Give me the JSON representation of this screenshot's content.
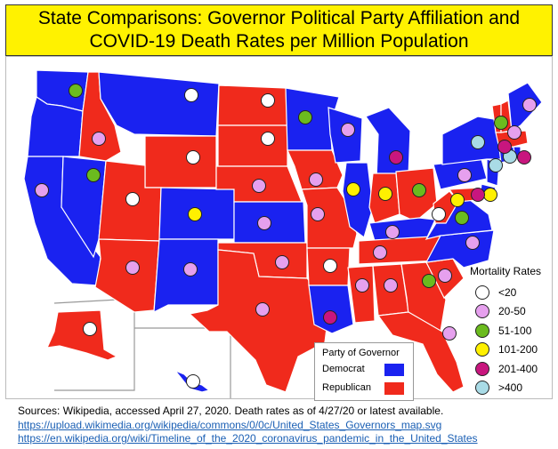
{
  "title": {
    "line1": "State Comparisons: Governor Political Party Affiliation and",
    "line2": "COVID-19 Death Rates per Million Population"
  },
  "colors": {
    "democrat": "#1a22f0",
    "republican": "#f02a1c",
    "rate_lt20": "#ffffff",
    "rate_20_50": "#e6a0ee",
    "rate_51_100": "#6bbb1e",
    "rate_101_200": "#fff000",
    "rate_201_400": "#c8167e",
    "rate_gt400": "#a9dbe6"
  },
  "mortality_legend": {
    "title": "Mortality Rates",
    "items": [
      {
        "label": "<20",
        "key": "rate_lt20"
      },
      {
        "label": "20-50",
        "key": "rate_20_50"
      },
      {
        "label": "51-100",
        "key": "rate_51_100"
      },
      {
        "label": "101-200",
        "key": "rate_101_200"
      },
      {
        "label": "201-400",
        "key": "rate_201_400"
      },
      {
        "label": ">400",
        "key": "rate_gt400"
      }
    ]
  },
  "party_legend": {
    "title": "Party of Governor",
    "democrat_label": "Democrat",
    "republican_label": "Republican"
  },
  "sources": {
    "line1": "Sources: Wikipedia, accessed April 27, 2020. Death rates as of 4/27/20 or latest available.",
    "link1": "https://upload.wikimedia.org/wikipedia/commons/0/0c/United_States_Governors_map.svg",
    "link2": "https://en.wikipedia.org/wiki/Timeline_of_the_2020_coronavirus_pandemic_in_the_United_States"
  },
  "states": [
    {
      "name": "WA",
      "party": "democrat",
      "rate": "rate_51_100"
    },
    {
      "name": "OR",
      "party": "democrat",
      "rate": "rate_20_50"
    },
    {
      "name": "CA",
      "party": "democrat",
      "rate": "rate_20_50"
    },
    {
      "name": "NV",
      "party": "democrat",
      "rate": "rate_51_100"
    },
    {
      "name": "ID",
      "party": "republican",
      "rate": "rate_20_50"
    },
    {
      "name": "MT",
      "party": "democrat",
      "rate": "rate_lt20"
    },
    {
      "name": "WY",
      "party": "republican",
      "rate": "rate_lt20"
    },
    {
      "name": "UT",
      "party": "republican",
      "rate": "rate_lt20"
    },
    {
      "name": "AZ",
      "party": "republican",
      "rate": "rate_20_50"
    },
    {
      "name": "CO",
      "party": "democrat",
      "rate": "rate_101_200"
    },
    {
      "name": "NM",
      "party": "democrat",
      "rate": "rate_20_50"
    },
    {
      "name": "ND",
      "party": "republican",
      "rate": "rate_lt20"
    },
    {
      "name": "SD",
      "party": "republican",
      "rate": "rate_lt20"
    },
    {
      "name": "NE",
      "party": "republican",
      "rate": "rate_20_50"
    },
    {
      "name": "KS",
      "party": "democrat",
      "rate": "rate_20_50"
    },
    {
      "name": "OK",
      "party": "republican",
      "rate": "rate_20_50"
    },
    {
      "name": "TX",
      "party": "republican",
      "rate": "rate_20_50"
    },
    {
      "name": "MN",
      "party": "democrat",
      "rate": "rate_51_100"
    },
    {
      "name": "IA",
      "party": "republican",
      "rate": "rate_20_50"
    },
    {
      "name": "MO",
      "party": "republican",
      "rate": "rate_20_50"
    },
    {
      "name": "AR",
      "party": "republican",
      "rate": "rate_lt20"
    },
    {
      "name": "LA",
      "party": "democrat",
      "rate": "rate_201_400"
    },
    {
      "name": "WI",
      "party": "democrat",
      "rate": "rate_20_50"
    },
    {
      "name": "IL",
      "party": "democrat",
      "rate": "rate_101_200"
    },
    {
      "name": "MI",
      "party": "democrat",
      "rate": "rate_201_400"
    },
    {
      "name": "IN",
      "party": "republican",
      "rate": "rate_101_200"
    },
    {
      "name": "OH",
      "party": "republican",
      "rate": "rate_51_100"
    },
    {
      "name": "KY",
      "party": "democrat",
      "rate": "rate_20_50"
    },
    {
      "name": "TN",
      "party": "republican",
      "rate": "rate_20_50"
    },
    {
      "name": "MS",
      "party": "republican",
      "rate": "rate_20_50"
    },
    {
      "name": "AL",
      "party": "republican",
      "rate": "rate_20_50"
    },
    {
      "name": "GA",
      "party": "republican",
      "rate": "rate_51_100"
    },
    {
      "name": "FL",
      "party": "republican",
      "rate": "rate_20_50"
    },
    {
      "name": "SC",
      "party": "republican",
      "rate": "rate_20_50"
    },
    {
      "name": "NC",
      "party": "democrat",
      "rate": "rate_20_50"
    },
    {
      "name": "VA",
      "party": "democrat",
      "rate": "rate_51_100"
    },
    {
      "name": "WV",
      "party": "republican",
      "rate": "rate_lt20"
    },
    {
      "name": "PA",
      "party": "democrat",
      "rate": "rate_20_50"
    },
    {
      "name": "MD",
      "party": "republican",
      "rate": "rate_101_200"
    },
    {
      "name": "DE",
      "party": "democrat",
      "rate": "rate_101_200"
    },
    {
      "name": "DC",
      "party": "democrat",
      "rate": "rate_201_400"
    },
    {
      "name": "NJ",
      "party": "democrat",
      "rate": "rate_gt400"
    },
    {
      "name": "NY",
      "party": "democrat",
      "rate": "rate_gt400"
    },
    {
      "name": "CT",
      "party": "democrat",
      "rate": "rate_gt400"
    },
    {
      "name": "RI",
      "party": "democrat",
      "rate": "rate_201_400"
    },
    {
      "name": "MA",
      "party": "republican",
      "rate": "rate_201_400"
    },
    {
      "name": "VT",
      "party": "republican",
      "rate": "rate_51_100"
    },
    {
      "name": "NH",
      "party": "republican",
      "rate": "rate_20_50"
    },
    {
      "name": "ME",
      "party": "democrat",
      "rate": "rate_20_50"
    },
    {
      "name": "AK",
      "party": "republican",
      "rate": "rate_lt20"
    },
    {
      "name": "HI",
      "party": "democrat",
      "rate": "rate_lt20"
    }
  ]
}
